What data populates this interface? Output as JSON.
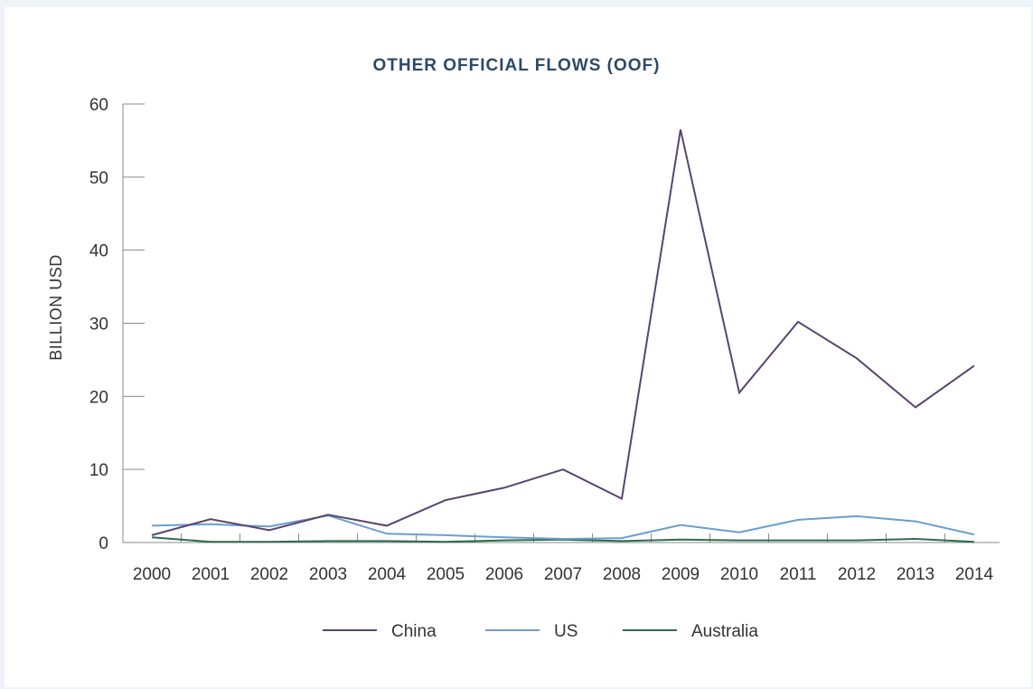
{
  "chart_data": {
    "type": "line",
    "title": "OTHER OFFICIAL FLOWS (OOF)",
    "ylabel": "BILLION USD",
    "xlabel": "",
    "ylim": [
      0,
      60
    ],
    "y_ticks": [
      0,
      10,
      20,
      30,
      40,
      50,
      60
    ],
    "categories": [
      "2000",
      "2001",
      "2002",
      "2003",
      "2004",
      "2005",
      "2006",
      "2007",
      "2008",
      "2009",
      "2010",
      "2011",
      "2012",
      "2013",
      "2014"
    ],
    "grid": false,
    "legend_position": "bottom",
    "series": [
      {
        "name": "China",
        "color": "#5a4470",
        "values": [
          1.0,
          3.2,
          1.7,
          3.8,
          2.3,
          5.8,
          7.5,
          10.0,
          6.0,
          56.5,
          20.5,
          30.2,
          25.2,
          18.5,
          24.2
        ]
      },
      {
        "name": "US",
        "color": "#6a9ed0",
        "values": [
          2.3,
          2.5,
          2.2,
          3.7,
          1.2,
          1.0,
          0.7,
          0.5,
          0.6,
          2.4,
          1.4,
          3.1,
          3.6,
          2.9,
          1.1
        ]
      },
      {
        "name": "Australia",
        "color": "#2f6b50",
        "values": [
          0.7,
          0.1,
          0.1,
          0.2,
          0.2,
          0.1,
          0.3,
          0.4,
          0.2,
          0.4,
          0.3,
          0.3,
          0.3,
          0.5,
          0.1
        ]
      }
    ]
  }
}
